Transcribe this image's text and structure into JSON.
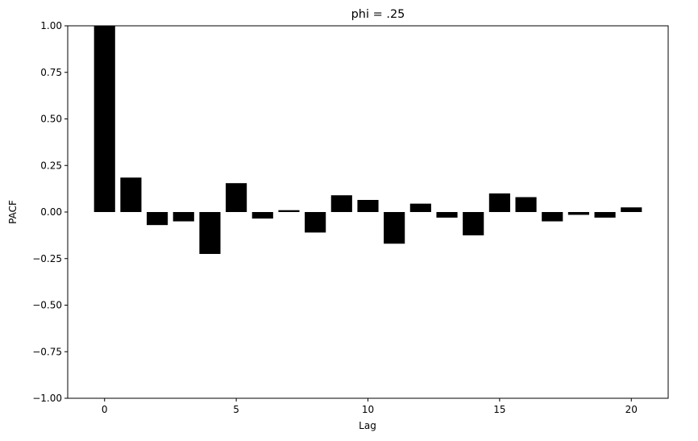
{
  "chart_data": {
    "type": "bar",
    "title": "phi = .25",
    "xlabel": "Lag",
    "ylabel": "PACF",
    "x": [
      0,
      1,
      2,
      3,
      4,
      5,
      6,
      7,
      8,
      9,
      10,
      11,
      12,
      13,
      14,
      15,
      16,
      17,
      18,
      19,
      20
    ],
    "values": [
      1.0,
      0.185,
      -0.07,
      -0.05,
      -0.225,
      0.155,
      -0.035,
      0.01,
      -0.11,
      0.09,
      0.065,
      -0.17,
      0.045,
      -0.03,
      -0.125,
      0.1,
      0.08,
      -0.05,
      -0.015,
      -0.03,
      0.025
    ],
    "xlim": [
      -1.4,
      21.4
    ],
    "ylim": [
      -1.0,
      1.0
    ],
    "xticks": [
      0,
      5,
      10,
      15,
      20
    ],
    "yticks": [
      -1.0,
      -0.75,
      -0.5,
      -0.25,
      0.0,
      0.25,
      0.5,
      0.75,
      1.0
    ],
    "ytick_labels": [
      "−1.00",
      "−0.75",
      "−0.50",
      "−0.25",
      "0.00",
      "0.25",
      "0.50",
      "0.75",
      "1.00"
    ],
    "xtick_labels": [
      "0",
      "5",
      "10",
      "15",
      "20"
    ],
    "grid": false,
    "bar_color": "#000000"
  }
}
